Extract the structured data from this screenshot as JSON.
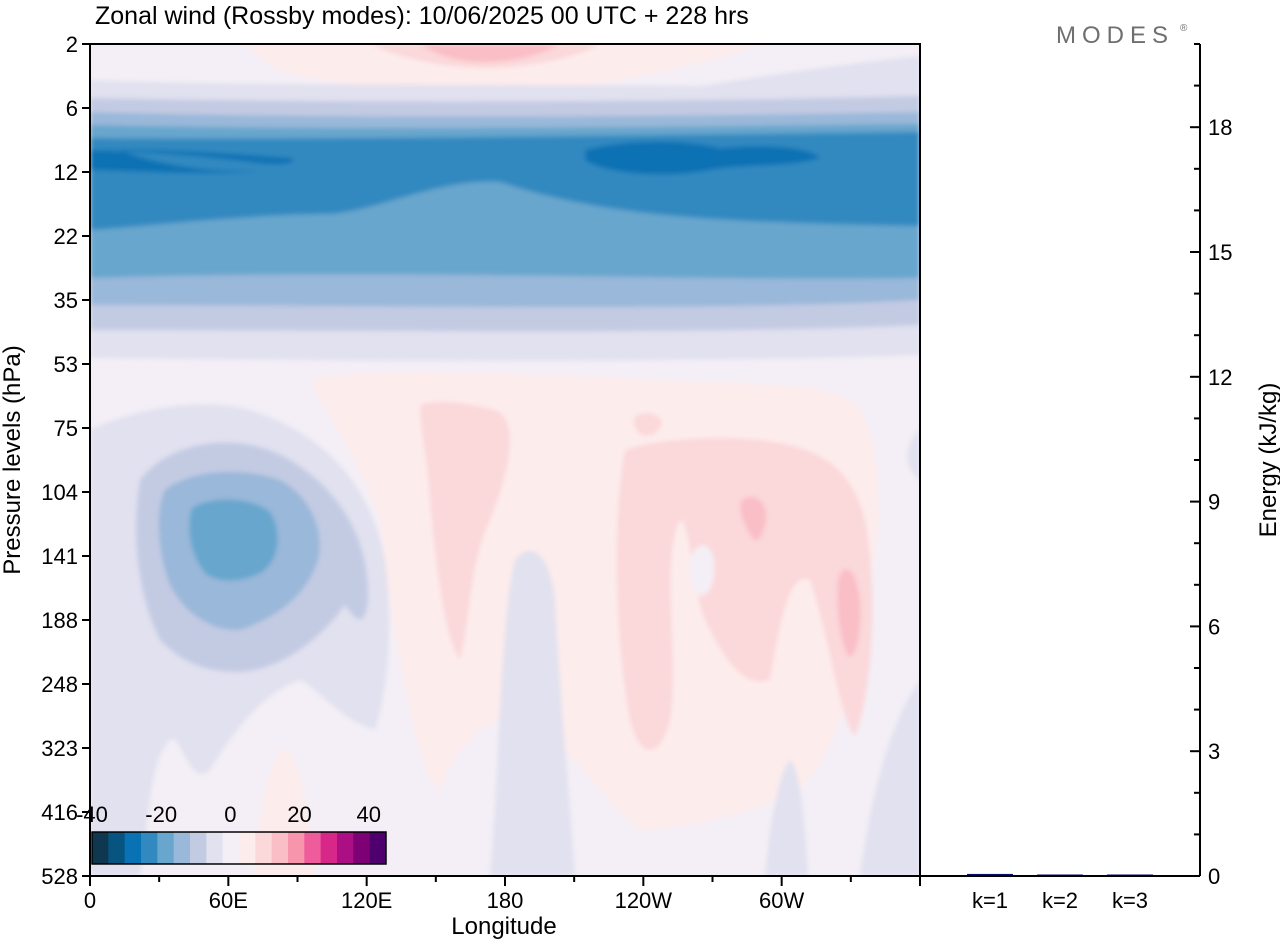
{
  "title": "Zonal wind (Rossby modes):  10/06/2025  00 UTC  + 228 hrs",
  "logo": "MODES",
  "logo_mark": "®",
  "colors": {
    "neg": [
      "#0f3850",
      "#085480",
      "#0872b4",
      "#3189c0",
      "#68a6cd",
      "#9ab8d9",
      "#c3cbe3",
      "#e1e1ef"
    ],
    "zero": "#f4eff6",
    "pos": [
      "#fdecec",
      "#fbd8da",
      "#f9bec6",
      "#f695ab",
      "#ee5c9c",
      "#d72789",
      "#ac0e83",
      "#7d0075",
      "#4e006e"
    ],
    "bar": "#0c0c6e"
  },
  "chart_data": [
    {
      "type": "heatmap",
      "xlabel": "Longitude",
      "ylabel": "Pressure levels (hPa)",
      "x_ticks": [
        "0",
        "60E",
        "120E",
        "180",
        "120W",
        "60W"
      ],
      "x_tick_values": [
        0,
        60,
        120,
        180,
        240,
        300
      ],
      "xlim": [
        0,
        360
      ],
      "y_ticks": [
        "2",
        "6",
        "12",
        "22",
        "35",
        "53",
        "75",
        "104",
        "141",
        "188",
        "248",
        "323",
        "416",
        "528"
      ],
      "colorbar": {
        "tick_labels": [
          "-40",
          "-20",
          "0",
          "20",
          "40"
        ],
        "levels": [
          -40,
          -35,
          -30,
          -25,
          -20,
          -15,
          -10,
          -5,
          0,
          5,
          10,
          15,
          20,
          25,
          30,
          35,
          40,
          45
        ]
      },
      "features": [
        {
          "lon": [
            0,
            360
          ],
          "level": 12,
          "value": -30
        },
        {
          "lon": [
            40,
            80
          ],
          "level": 141,
          "value": -20
        },
        {
          "lon": [
            145,
            180
          ],
          "level": 104,
          "value": 10
        },
        {
          "lon": [
            275,
            290
          ],
          "level": 120,
          "value": 15
        },
        {
          "lon": [
            325,
            335
          ],
          "level": 188,
          "value": 15
        }
      ]
    },
    {
      "type": "bar",
      "categories": [
        "k=1",
        "k=2",
        "k=3"
      ],
      "values": [
        0.05,
        0.02,
        0.01
      ],
      "ylabel": "Energy (kJ/kg)",
      "y_ticks": [
        "0",
        "3",
        "6",
        "9",
        "12",
        "15",
        "18"
      ],
      "ylim": [
        0,
        20
      ]
    }
  ]
}
